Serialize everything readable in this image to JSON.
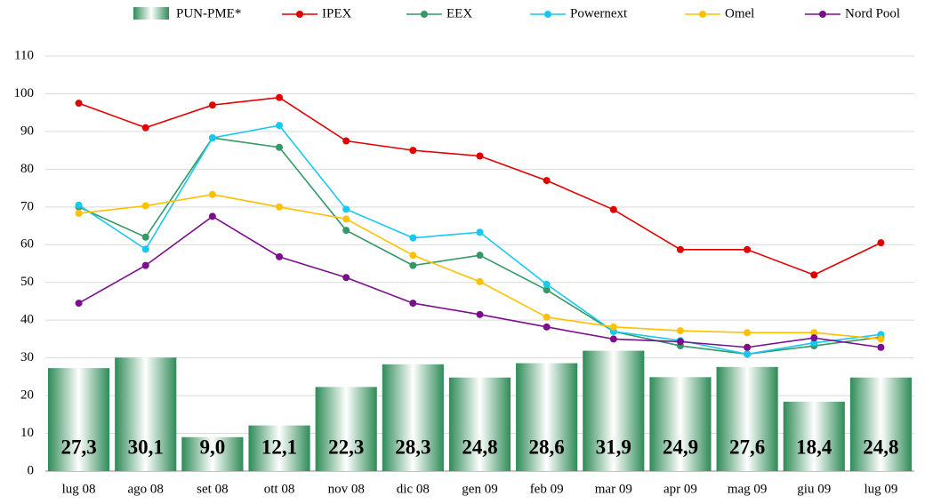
{
  "chart_data": {
    "type": "bar_line",
    "categories": [
      "lug 08",
      "ago 08",
      "set 08",
      "ott 08",
      "nov 08",
      "dic 08",
      "gen 09",
      "feb 09",
      "mar 09",
      "apr 09",
      "mag 09",
      "giu 09",
      "lug 09"
    ],
    "bar": {
      "name": "PUN-PME*",
      "color": "#2e8b57",
      "values": [
        27.3,
        30.1,
        9.0,
        12.1,
        22.3,
        28.3,
        24.8,
        28.6,
        31.9,
        24.9,
        27.6,
        18.4,
        24.8
      ],
      "value_labels": [
        "27,3",
        "30,1",
        "9,0",
        "12,1",
        "22,3",
        "28,3",
        "24,8",
        "28,6",
        "31,9",
        "24,9",
        "27,6",
        "18,4",
        "24,8"
      ]
    },
    "series": [
      {
        "name": "IPEX",
        "color": "#e00000",
        "values": [
          97.5,
          91,
          97,
          99,
          87.5,
          85,
          83.5,
          77,
          69.3,
          58.7,
          58.7,
          52,
          60.5
        ]
      },
      {
        "name": "EEX",
        "color": "#339966",
        "values": [
          70,
          62,
          88.3,
          85.8,
          63.8,
          54.5,
          57.2,
          48,
          37,
          33.2,
          31,
          33.2,
          35.5
        ]
      },
      {
        "name": "Powernext",
        "color": "#19c8ef",
        "values": [
          70.5,
          58.8,
          88.3,
          91.6,
          69.4,
          61.8,
          63.3,
          49.5,
          37,
          34.6,
          31,
          34,
          36.2
        ]
      },
      {
        "name": "Omel",
        "color": "#ffc000",
        "values": [
          68.3,
          70.3,
          73.3,
          70,
          66.8,
          57.2,
          50.2,
          40.8,
          38.2,
          37.2,
          36.7,
          36.7,
          35
        ]
      },
      {
        "name": "Nord Pool",
        "color": "#7b0f8b",
        "values": [
          44.5,
          54.5,
          67.5,
          56.8,
          51.3,
          44.5,
          41.5,
          38.2,
          35,
          34.3,
          32.8,
          35.3,
          32.8
        ]
      }
    ],
    "ylim": [
      0,
      110
    ],
    "yticks": [
      0,
      10,
      20,
      30,
      40,
      50,
      60,
      70,
      80,
      90,
      100,
      110
    ],
    "grid": true,
    "legend": "top"
  }
}
